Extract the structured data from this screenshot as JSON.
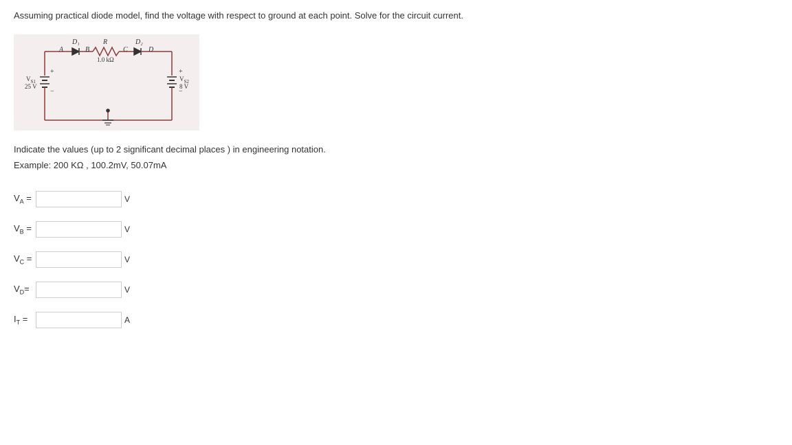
{
  "question": "Assuming practical diode model, find the voltage with respect to ground at each point. Solve for the circuit current.",
  "circuit": {
    "labels": {
      "A": "A",
      "B": "B",
      "C": "C",
      "D": "D",
      "D1": "D₁",
      "D2": "D₂",
      "R": "R",
      "R_val": "1.0 kΩ",
      "VS1": "V",
      "VS1_sub": "S1",
      "VS1_val": "25 V",
      "VS2": "V",
      "VS2_sub": "S2",
      "VS2_val": "8 V",
      "plus": "+",
      "minus": "−"
    },
    "colors": {
      "bg": "#f5eeee",
      "wire": "#8b3a3a",
      "text": "#333333"
    }
  },
  "instruction": "Indicate the values (up to 2 significant decimal places ) in engineering notation.",
  "example": "Example: 200 KΩ , 100.2mV, 50.07mA",
  "answers": [
    {
      "label_main": "V",
      "label_sub": "A",
      "eq": " =",
      "unit": "V"
    },
    {
      "label_main": "V",
      "label_sub": "B",
      "eq": " =",
      "unit": "V"
    },
    {
      "label_main": "V",
      "label_sub": "C",
      "eq": " =",
      "unit": "V"
    },
    {
      "label_main": "V",
      "label_sub": "D",
      "eq": "=",
      "unit": "V"
    },
    {
      "label_main": "I",
      "label_sub": "T",
      "eq": " =",
      "unit": "A"
    }
  ]
}
